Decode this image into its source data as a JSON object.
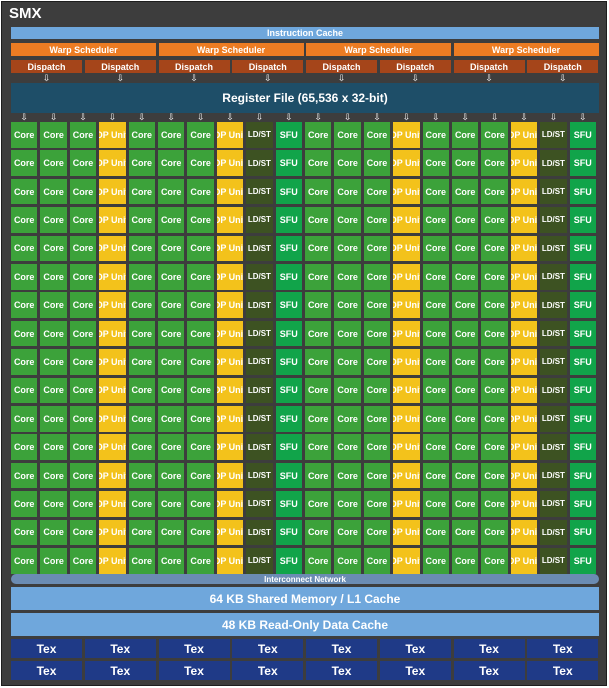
{
  "smx": {
    "title": "SMX"
  },
  "instruction_cache": "Instruction Cache",
  "warp_scheduler_label": "Warp Scheduler",
  "dispatch_label": "Dispatch",
  "register_file": "Register File (65,536 x 32-bit)",
  "grid": {
    "rows": 16,
    "column_pattern": [
      "Core",
      "Core",
      "Core",
      "DP Unit",
      "Core",
      "Core",
      "Core",
      "DP Unit",
      "LD/ST",
      "SFU",
      "Core",
      "Core",
      "Core",
      "DP Unit",
      "Core",
      "Core",
      "Core",
      "DP Unit",
      "LD/ST",
      "SFU"
    ]
  },
  "interconnect": "Interconnect Network",
  "shared_memory": "64 KB Shared Memory / L1 Cache",
  "readonly_cache": "48 KB Read-Only Data Cache",
  "tex_label": "Tex",
  "colors": {
    "core": "#3ca23a",
    "dp_unit": "#f3c21b",
    "ld_st": "#3d5222",
    "sfu": "#11a44a",
    "warp_scheduler": "#ec7c23",
    "dispatch": "#a5451a",
    "register_file": "#1e4e68",
    "cache": "#6fa7dc",
    "tex": "#1f3a87"
  }
}
